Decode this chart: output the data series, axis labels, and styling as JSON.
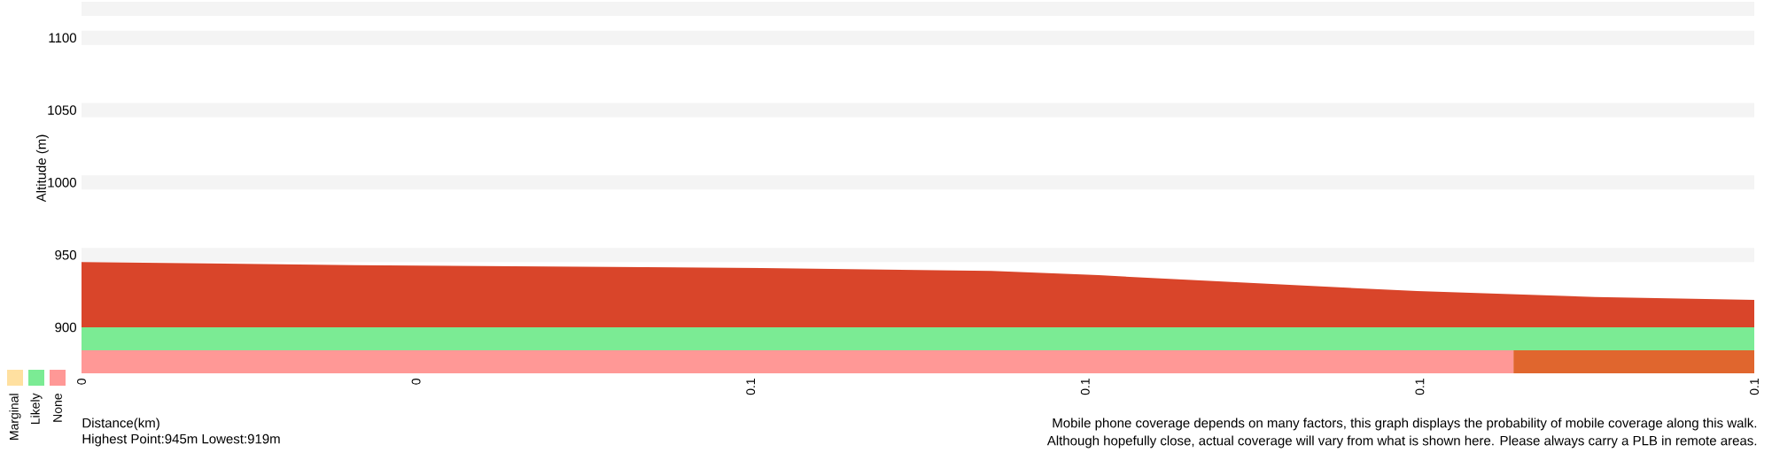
{
  "chart_data": [
    {
      "type": "area",
      "ylabel": "Altitude (m)",
      "color": "#d9452a",
      "x": [
        0,
        0.0204,
        0.0508,
        0.068,
        0.076,
        0.0866,
        0.0998,
        0.1131,
        0.125
      ],
      "values": [
        945,
        943,
        941,
        939,
        936,
        931,
        925,
        921,
        919
      ],
      "xlim": [
        0,
        0.125
      ],
      "ylim": [
        900,
        1120
      ],
      "yticks": [
        900,
        950,
        1000,
        1050,
        1100,
        {
          "value": 1120,
          "label": null
        }
      ],
      "grid": "y",
      "tick_labels": "y",
      "annotations": [
        "Highest Point:945m Lowest:919m",
        "Mobile phone coverage depends on many factors, this graph displays the probability of mobile coverage along this walk.",
        "Although hopefully close, actual coverage will vary from what is shown here. Please always carry a PLB in remote areas."
      ]
    },
    {
      "type": "bar",
      "orientation": "horizontal",
      "stacked": true,
      "categories": [
        null,
        null
      ],
      "xlabel": "Distance(km)",
      "xlim": [
        0,
        0.125
      ],
      "xticks": [
        {
          "value": 0,
          "label": "0"
        },
        {
          "value": 0.025,
          "label": "0"
        },
        {
          "value": 0.05,
          "label": "0.1"
        },
        {
          "value": 0.075,
          "label": "0.1"
        },
        {
          "value": 0.1,
          "label": "0.1"
        },
        {
          "value": 0.125,
          "label": "0.1"
        }
      ],
      "tick_labels": "x",
      "legend": "left",
      "series": [
        {
          "name": "Likely",
          "color": "#7beb94",
          "values": [
            0.125,
            0
          ]
        },
        {
          "name": "None",
          "color": "#ff9896",
          "values": [
            0,
            0.107
          ]
        },
        {
          "name": "Marginal",
          "color": "#ffe0a0",
          "values": [
            0,
            0
          ]
        },
        {
          "color": "#e0662e",
          "values": [
            0,
            0.018
          ]
        }
      ]
    }
  ]
}
